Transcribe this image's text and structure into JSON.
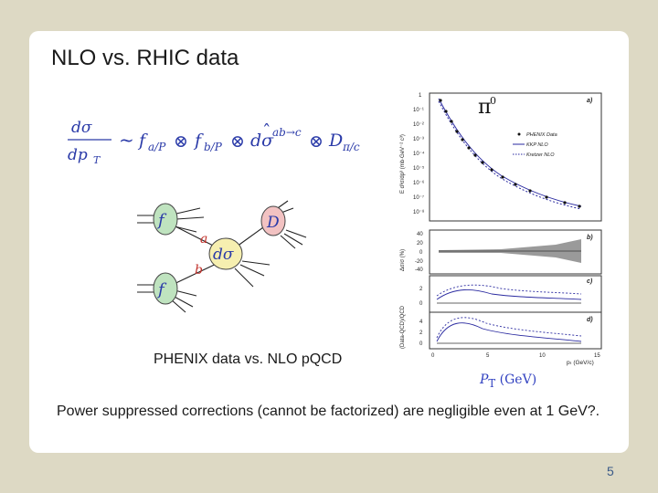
{
  "slide": {
    "title": "NLO vs. RHIC data",
    "caption": "PHENIX data vs. NLO pQCD",
    "pt_axis_label_italic": "P",
    "pt_axis_label_sub": "T",
    "pt_axis_label_unit": " (GeV)",
    "body_text": "Power suppressed corrections (cannot be factorized) are negligible even at 1 GeV?.",
    "page_number": "5"
  },
  "formula": {
    "num": "dσ",
    "den": "dp",
    "den_sub": "T",
    "tilde": "~",
    "f1": "f",
    "f1_sub": "a/P",
    "otimes": "⊗",
    "f2": "f",
    "f2_sub": "b/P",
    "dsigma": "dσ",
    "hat": "ˆ",
    "dsigma_sup": "ab→c",
    "D": "D",
    "D_sub": "π/c"
  },
  "diagram": {
    "f_top": "f",
    "f_bottom": "f",
    "a": "a",
    "b": "b",
    "D": "D",
    "dsigma": "dσ"
  },
  "plot": {
    "pi0": "π",
    "pi0_sup": "0",
    "panel_a": "a)",
    "panel_b": "b)",
    "panel_c": "c)",
    "panel_d": "d)",
    "legend": [
      "PHENIX Data",
      "KKP NLO",
      "Kretzer NLO"
    ],
    "y_label_a": "E d³σ/dp³ (mb·GeV⁻² c³)",
    "y_label_b": "Δσ/σ (%)",
    "y_label_cd": "(Data-QCD)/QCD",
    "y_ticks_a": [
      "1",
      "10⁻¹",
      "10⁻²",
      "10⁻³",
      "10⁻⁴",
      "10⁻⁵",
      "10⁻⁶",
      "10⁻⁷",
      "10⁻⁸"
    ],
    "y_ticks_b": [
      "40",
      "20",
      "0",
      "-20",
      "-40"
    ],
    "y_ticks_c": [
      "2",
      "0"
    ],
    "y_ticks_d": [
      "4",
      "2",
      "0"
    ],
    "x_ticks": [
      "0",
      "5",
      "10",
      "15"
    ],
    "x_label": "pₜ (GeV/c)"
  }
}
